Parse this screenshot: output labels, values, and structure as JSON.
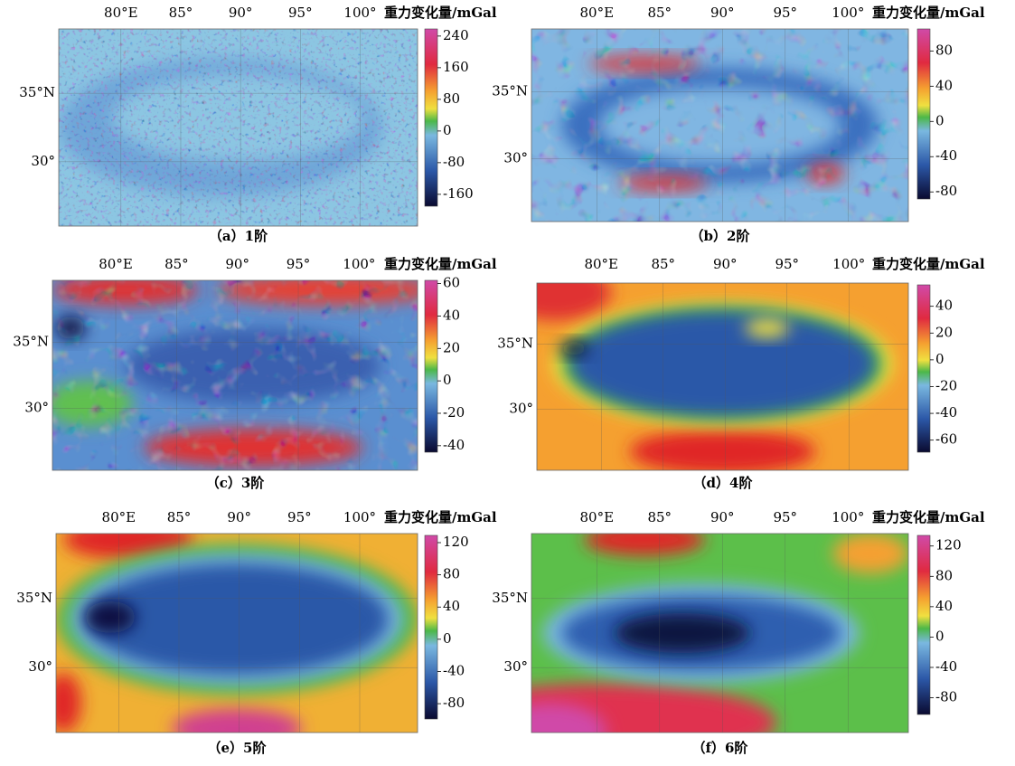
{
  "panels": [
    {
      "caption": "（a）1阶",
      "colorbar_title": "重力变化量/mGal",
      "lonlim": [
        74.8,
        104.8
      ],
      "latlim": [
        25.3,
        39.7
      ],
      "lon_ticks": [
        {
          "value": 80,
          "label": "80°E"
        },
        {
          "value": 85,
          "label": "85°"
        },
        {
          "value": 90,
          "label": "90°"
        },
        {
          "value": 95,
          "label": "95°"
        },
        {
          "value": 100,
          "label": "100°"
        }
      ],
      "lat_ticks": [
        {
          "value": 35,
          "label": "35°N"
        },
        {
          "value": 30,
          "label": "30°"
        }
      ],
      "clim": [
        -190,
        258
      ],
      "cticks": [
        240,
        160,
        80,
        0,
        -80,
        -160
      ]
    },
    {
      "caption": "（b）2阶",
      "colorbar_title": "重力变化量/mGal",
      "lonlim": [
        74.8,
        104.8
      ],
      "latlim": [
        25.3,
        39.7
      ],
      "lon_ticks": [
        {
          "value": 80,
          "label": "80°E"
        },
        {
          "value": 85,
          "label": "85°"
        },
        {
          "value": 90,
          "label": "90°"
        },
        {
          "value": 95,
          "label": "95°"
        },
        {
          "value": 100,
          "label": "100°"
        }
      ],
      "lat_ticks": [
        {
          "value": 35,
          "label": "35°N"
        },
        {
          "value": 30,
          "label": "30°"
        }
      ],
      "clim": [
        -88,
        105
      ],
      "cticks": [
        80,
        40,
        0,
        -40,
        -80
      ]
    },
    {
      "caption": "（c）3阶",
      "colorbar_title": "重力变化量/mGal",
      "lonlim": [
        74.8,
        104.8
      ],
      "latlim": [
        25.3,
        39.7
      ],
      "lon_ticks": [
        {
          "value": 80,
          "label": "80°E"
        },
        {
          "value": 85,
          "label": "85°"
        },
        {
          "value": 90,
          "label": "90°"
        },
        {
          "value": 95,
          "label": "95°"
        },
        {
          "value": 100,
          "label": "100°"
        }
      ],
      "lat_ticks": [
        {
          "value": 35,
          "label": "35°N"
        },
        {
          "value": 30,
          "label": "30°"
        }
      ],
      "clim": [
        -44,
        62
      ],
      "cticks": [
        60,
        40,
        20,
        0,
        -20,
        -40
      ]
    },
    {
      "caption": "（d）4阶",
      "colorbar_title": "重力变化量/mGal",
      "lonlim": [
        74.8,
        104.8
      ],
      "latlim": [
        25.3,
        39.7
      ],
      "lon_ticks": [
        {
          "value": 80,
          "label": "80°E"
        },
        {
          "value": 85,
          "label": "85°"
        },
        {
          "value": 90,
          "label": "90°"
        },
        {
          "value": 95,
          "label": "95°"
        },
        {
          "value": 100,
          "label": "100°"
        }
      ],
      "lat_ticks": [
        {
          "value": 35,
          "label": "35°N"
        },
        {
          "value": 30,
          "label": "30°"
        }
      ],
      "clim": [
        -69,
        56
      ],
      "cticks": [
        40,
        20,
        0,
        -20,
        -40,
        -60
      ]
    },
    {
      "caption": "（e）5阶",
      "colorbar_title": "重力变化量/mGal",
      "lonlim": [
        74.8,
        104.8
      ],
      "latlim": [
        25.3,
        39.7
      ],
      "lon_ticks": [
        {
          "value": 80,
          "label": "80°E"
        },
        {
          "value": 85,
          "label": "85°"
        },
        {
          "value": 90,
          "label": "90°"
        },
        {
          "value": 95,
          "label": "95°"
        },
        {
          "value": 100,
          "label": "100°"
        }
      ],
      "lat_ticks": [
        {
          "value": 35,
          "label": "35°N"
        },
        {
          "value": 30,
          "label": "30°"
        }
      ],
      "clim": [
        -99,
        129
      ],
      "cticks": [
        120,
        80,
        40,
        0,
        -40,
        -80
      ]
    },
    {
      "caption": "（f）6阶",
      "colorbar_title": "重力变化量/mGal",
      "lonlim": [
        74.8,
        104.8
      ],
      "latlim": [
        25.3,
        39.7
      ],
      "lon_ticks": [
        {
          "value": 80,
          "label": "80°E"
        },
        {
          "value": 85,
          "label": "85°"
        },
        {
          "value": 90,
          "label": "90°"
        },
        {
          "value": 95,
          "label": "95°"
        },
        {
          "value": 100,
          "label": "100°"
        }
      ],
      "lat_ticks": [
        {
          "value": 35,
          "label": "35°N"
        },
        {
          "value": 30,
          "label": "30°"
        }
      ],
      "clim": [
        -102,
        134
      ],
      "cticks": [
        120,
        80,
        40,
        0,
        -40,
        -80
      ]
    }
  ]
}
